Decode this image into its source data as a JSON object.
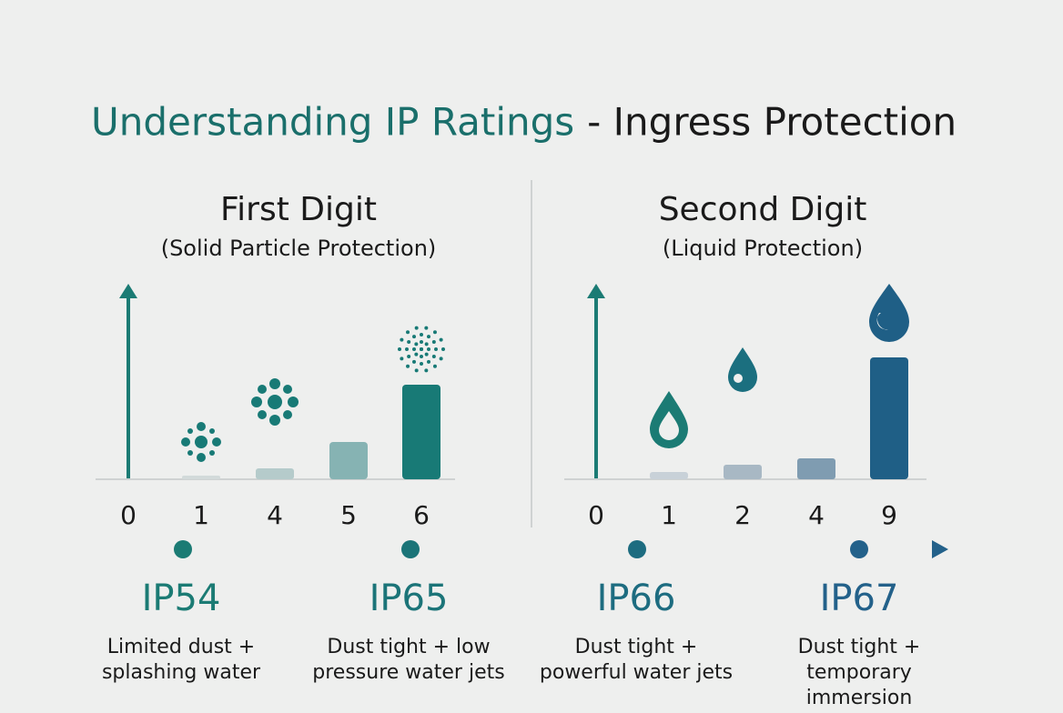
{
  "title": {
    "highlight": "Understanding IP Ratings",
    "rest": "- Ingress Protection"
  },
  "panels": [
    {
      "heading": "First Digit",
      "subheading": "(Solid Particle Protection)",
      "digits": [
        "0",
        "1",
        "4",
        "5",
        "6"
      ]
    },
    {
      "heading": "Second Digit",
      "subheading": "(Liquid Protection)",
      "digits": [
        "0",
        "1",
        "2",
        "4",
        "9"
      ]
    }
  ],
  "ratings": [
    {
      "code": "IP54",
      "description": [
        "Limited dust +",
        "splashing water"
      ]
    },
    {
      "code": "IP65",
      "description": [
        "Dust tight + low",
        "pressure water jets"
      ]
    },
    {
      "code": "IP66",
      "description": [
        "Dust tight +",
        "powerful water jets"
      ]
    },
    {
      "code": "IP67",
      "description": [
        "Dust tight +",
        "temporary",
        "immersion"
      ]
    }
  ]
}
